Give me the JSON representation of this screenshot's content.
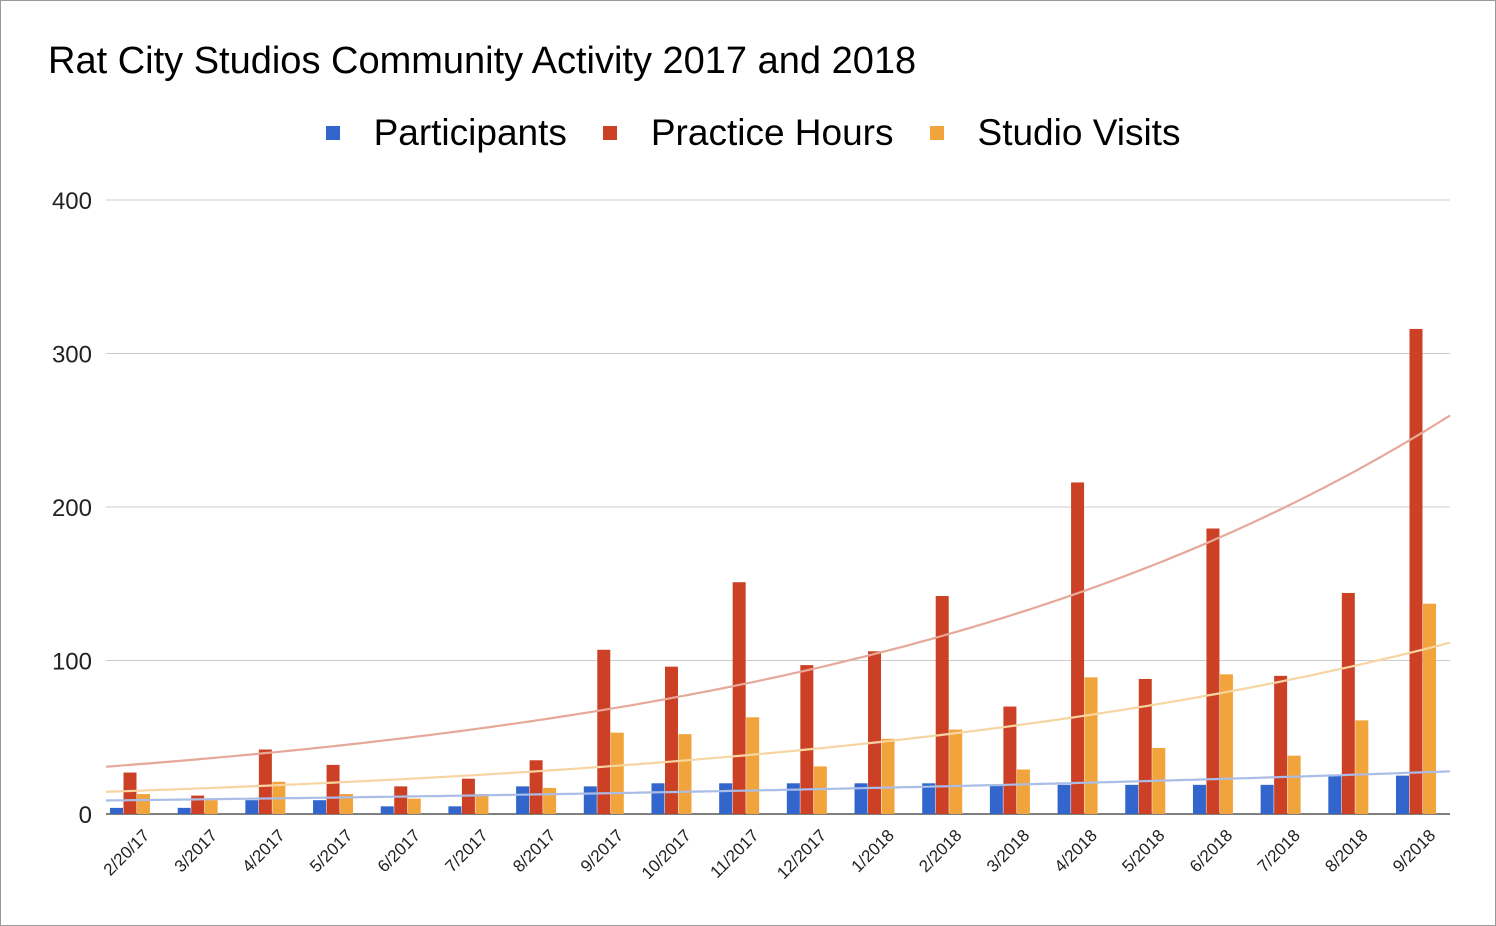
{
  "chart_data": {
    "type": "bar",
    "title": "Rat City Studios Community Activity 2017 and 2018",
    "xlabel": "",
    "ylabel": "",
    "ylim": [
      0,
      400
    ],
    "yticks": [
      0,
      100,
      200,
      300,
      400
    ],
    "grid": true,
    "legend_position": "top",
    "trendlines": true,
    "categories": [
      "2/20/17",
      "3/2017",
      "4/2017",
      "5/2017",
      "6/2017",
      "7/2017",
      "8/2017",
      "9/2017",
      "10/2017",
      "11/2017",
      "12/2017",
      "1/2018",
      "2/2018",
      "3/2018",
      "4/2018",
      "5/2018",
      "6/2018",
      "7/2018",
      "8/2018",
      "9/2018"
    ],
    "series": [
      {
        "name": "Participants",
        "color": "#3366cc",
        "trend_color": "#a9bde6",
        "values": [
          4,
          4,
          9,
          9,
          5,
          5,
          18,
          18,
          20,
          20,
          20,
          20,
          20,
          19,
          19,
          19,
          19,
          19,
          25,
          25
        ],
        "trend": [
          9,
          27
        ]
      },
      {
        "name": "Practice Hours",
        "color": "#cc4125",
        "trend_color": "#e6a999",
        "values": [
          27,
          12,
          42,
          32,
          18,
          23,
          35,
          107,
          96,
          151,
          97,
          106,
          142,
          70,
          216,
          88,
          186,
          90,
          144,
          316
        ],
        "trend": [
          32,
          246
        ]
      },
      {
        "name": "Studio Visits",
        "color": "#f1a33c",
        "trend_color": "#f7d5a2",
        "values": [
          13,
          9,
          21,
          13,
          10,
          13,
          17,
          53,
          52,
          63,
          31,
          49,
          55,
          29,
          89,
          43,
          91,
          38,
          61,
          137
        ],
        "trend": [
          15,
          106
        ]
      }
    ]
  }
}
